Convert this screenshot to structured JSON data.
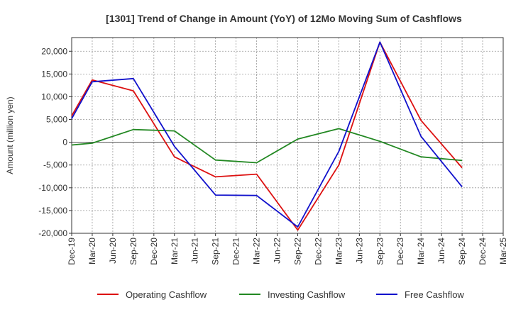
{
  "chart_data": {
    "type": "line",
    "title": "[1301]  Trend of Change in Amount (YoY) of 12Mo Moving Sum of Cashflows",
    "xlabel": "",
    "ylabel": "Amount (million yen)",
    "ylim": [
      -20000,
      23000
    ],
    "yticks": [
      -20000,
      -15000,
      -10000,
      -5000,
      0,
      5000,
      10000,
      15000,
      20000
    ],
    "ytick_labels": [
      "-20,000",
      "-15,000",
      "-10,000",
      "-5,000",
      "0",
      "5,000",
      "10,000",
      "15,000",
      "20,000"
    ],
    "categories": [
      "Dec-19",
      "Mar-20",
      "Jun-20",
      "Sep-20",
      "Dec-20",
      "Mar-21",
      "Jun-21",
      "Sep-21",
      "Dec-21",
      "Mar-22",
      "Jun-22",
      "Sep-22",
      "Dec-22",
      "Mar-23",
      "Jun-23",
      "Sep-23",
      "Dec-23",
      "Mar-24",
      "Jun-24",
      "Sep-24",
      "Dec-24",
      "Mar-25"
    ],
    "grid": true,
    "legend_position": "bottom",
    "series": [
      {
        "name": "Operating Cashflow",
        "color": "#dd1111",
        "values": [
          5800,
          13700,
          null,
          11300,
          null,
          -3200,
          null,
          -7600,
          null,
          -7000,
          null,
          -19300,
          null,
          -5000,
          null,
          22000,
          null,
          4800,
          null,
          -5600,
          null,
          null
        ]
      },
      {
        "name": "Investing Cashflow",
        "color": "#228822",
        "values": [
          -600,
          -200,
          null,
          2800,
          null,
          2500,
          null,
          -3900,
          null,
          -4500,
          null,
          700,
          null,
          3000,
          null,
          200,
          null,
          -3200,
          null,
          -4000,
          null,
          null
        ]
      },
      {
        "name": "Free Cashflow",
        "color": "#1111cc",
        "values": [
          5200,
          13300,
          null,
          14000,
          null,
          -900,
          null,
          -11600,
          null,
          -11700,
          null,
          -18600,
          null,
          -2000,
          null,
          22000,
          null,
          1300,
          null,
          -9800,
          null,
          null
        ]
      }
    ]
  }
}
